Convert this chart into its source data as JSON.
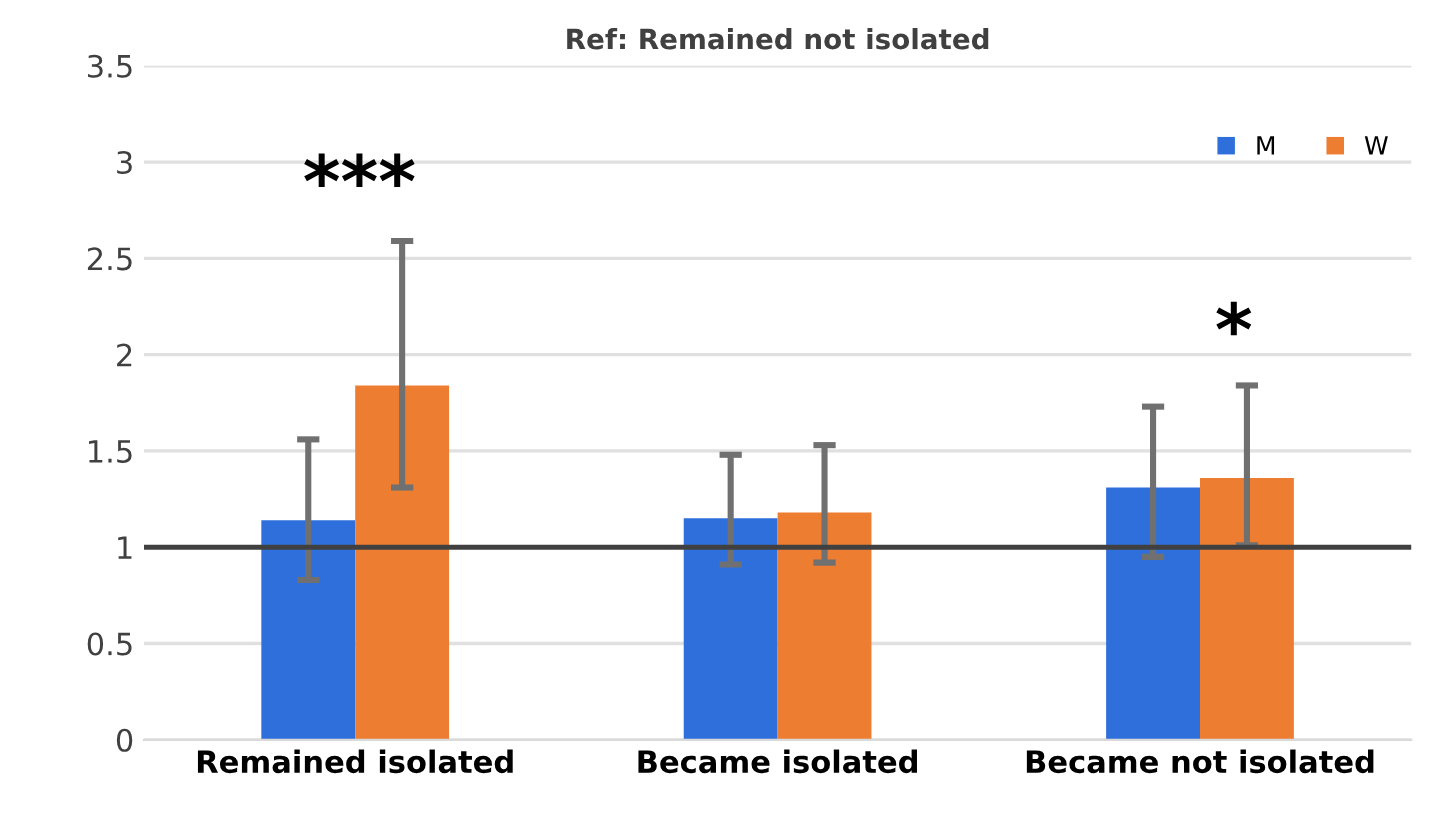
{
  "chart_data": {
    "type": "bar",
    "title": "Ref: Remained not isolated",
    "categories": [
      "Remained isolated",
      "Became isolated",
      "Became not isolated"
    ],
    "series": [
      {
        "name": "M",
        "color": "#2f6fdb",
        "values": [
          1.14,
          1.15,
          1.31
        ],
        "errors": [
          [
            0.83,
            1.56
          ],
          [
            0.91,
            1.48
          ],
          [
            0.95,
            1.73
          ]
        ]
      },
      {
        "name": "W",
        "color": "#ed7d31",
        "values": [
          1.84,
          1.18,
          1.36
        ],
        "errors": [
          [
            1.31,
            2.59
          ],
          [
            0.92,
            1.53
          ],
          [
            1.01,
            1.84
          ]
        ]
      }
    ],
    "ylim": [
      0,
      3.5
    ],
    "yticks": [
      0,
      0.5,
      1,
      1.5,
      2,
      2.5,
      3,
      3.5
    ],
    "ref_lines": [
      {
        "axis": "y",
        "value": 1,
        "color": "#404040"
      }
    ],
    "annotations": [
      "***",
      "*"
    ],
    "grid": "y",
    "legend": "top right"
  }
}
